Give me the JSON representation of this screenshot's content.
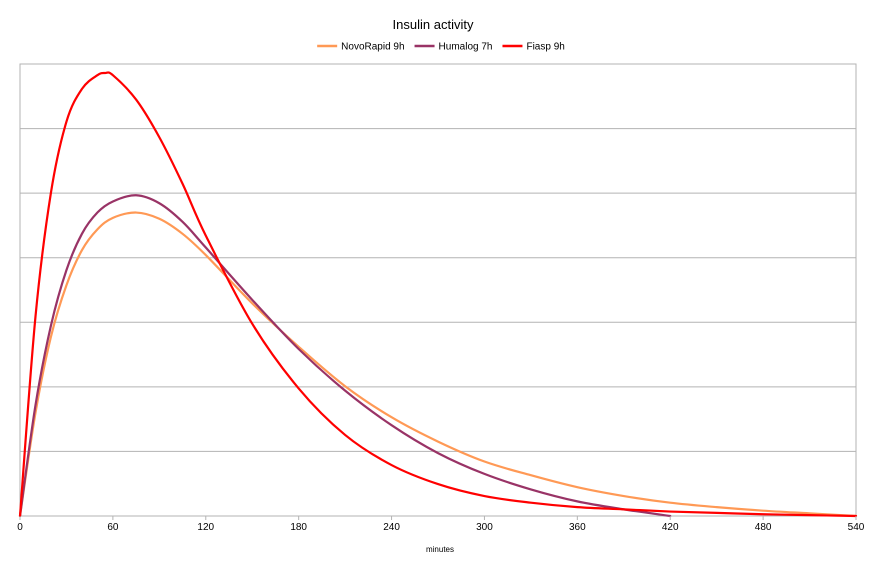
{
  "chart_data": {
    "type": "line",
    "title": "Insulin activity",
    "xlabel": "minutes",
    "ylabel": "",
    "xlim": [
      0,
      540
    ],
    "ylim": [
      0,
      1
    ],
    "grid": true,
    "legend_position": "top",
    "x_ticks": [
      0,
      60,
      120,
      180,
      240,
      300,
      360,
      420,
      480,
      540
    ],
    "x_tick_labels": [
      "0",
      "60",
      "120",
      "180",
      "240",
      "300",
      "360",
      "420",
      "480",
      "540"
    ],
    "y_gridlines": 7,
    "series": [
      {
        "name": "NovoRapid 9h",
        "color": "#ff9955",
        "x": [
          0,
          10,
          20,
          30,
          40,
          50,
          60,
          75,
          90,
          105,
          120,
          150,
          180,
          210,
          240,
          270,
          300,
          330,
          360,
          390,
          420,
          450,
          480,
          510,
          540
        ],
        "y": [
          0,
          0.233,
          0.405,
          0.521,
          0.6,
          0.647,
          0.673,
          0.685,
          0.671,
          0.637,
          0.589,
          0.48,
          0.382,
          0.293,
          0.223,
          0.168,
          0.123,
          0.092,
          0.065,
          0.045,
          0.03,
          0.02,
          0.012,
          0.006,
          0.0
        ]
      },
      {
        "name": "Humalog 7h",
        "color": "#993366",
        "x": [
          0,
          10,
          20,
          30,
          40,
          50,
          60,
          75,
          90,
          105,
          120,
          150,
          180,
          210,
          240,
          270,
          300,
          330,
          360,
          390,
          420
        ],
        "y": [
          0,
          0.25,
          0.43,
          0.555,
          0.637,
          0.685,
          0.71,
          0.724,
          0.706,
          0.664,
          0.606,
          0.488,
          0.377,
          0.283,
          0.205,
          0.142,
          0.095,
          0.06,
          0.033,
          0.015,
          0.0
        ]
      },
      {
        "name": "Fiasp 9h",
        "color": "#ff0000",
        "x": [
          0,
          10,
          20,
          30,
          40,
          50,
          55,
          60,
          75,
          90,
          105,
          120,
          150,
          180,
          210,
          240,
          270,
          300,
          330,
          360,
          390,
          420,
          450,
          480,
          510,
          540
        ],
        "y": [
          0,
          0.45,
          0.73,
          0.89,
          0.964,
          0.995,
          1.0,
          0.995,
          0.94,
          0.855,
          0.75,
          0.633,
          0.434,
          0.288,
          0.183,
          0.115,
          0.072,
          0.045,
          0.03,
          0.02,
          0.015,
          0.01,
          0.007,
          0.004,
          0.002,
          0.0
        ]
      }
    ]
  }
}
